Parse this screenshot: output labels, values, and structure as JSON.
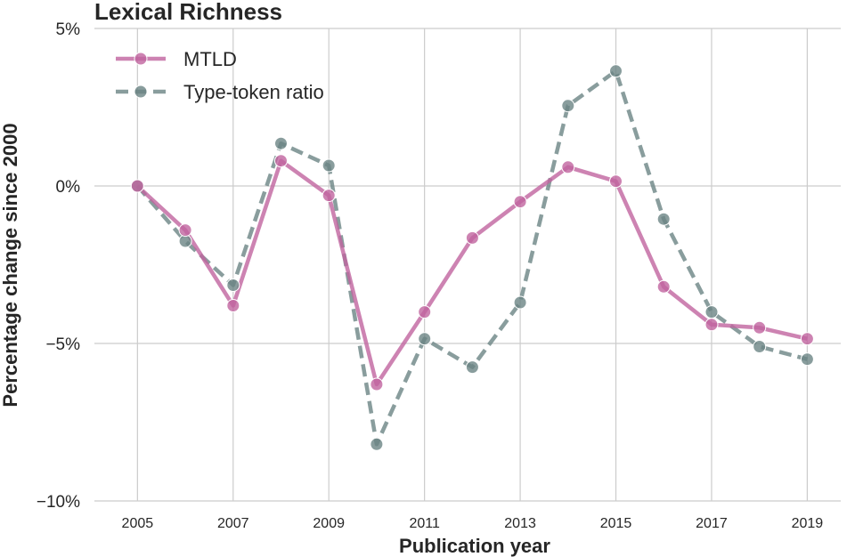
{
  "chart_data": {
    "type": "line",
    "title": "Lexical Richness",
    "xlabel": "Publication year",
    "ylabel": "Percentage change since 2000",
    "x": [
      2005,
      2006,
      2007,
      2008,
      2009,
      2010,
      2011,
      2012,
      2013,
      2014,
      2015,
      2016,
      2017,
      2018,
      2019
    ],
    "xlim": [
      2004.1,
      2019.7
    ],
    "ylim": [
      -10,
      5
    ],
    "xticks": [
      2005,
      2007,
      2009,
      2011,
      2013,
      2015,
      2017,
      2019
    ],
    "xtick_labels": [
      "2005",
      "2007",
      "2009",
      "2011",
      "2013",
      "2015",
      "2017",
      "2019"
    ],
    "yticks": [
      5,
      0,
      -5,
      -10
    ],
    "ytick_labels": [
      "5%",
      "0%",
      "−5%",
      "−10%"
    ],
    "grid": true,
    "legend_position": "top-left",
    "series": [
      {
        "name": "MTLD",
        "color": "#c0649f",
        "line_style": "solid",
        "marker": "circle",
        "values": [
          0.0,
          -1.4,
          -3.8,
          0.8,
          -0.3,
          -6.3,
          -4.0,
          -1.65,
          -0.5,
          0.6,
          0.15,
          -3.2,
          -4.4,
          -4.5,
          -4.85
        ]
      },
      {
        "name": "Type-token ratio",
        "color": "#6b8585",
        "line_style": "dashed",
        "marker": "circle",
        "values": [
          0.0,
          -1.75,
          -3.15,
          1.35,
          0.65,
          -8.2,
          -4.85,
          -5.75,
          -3.7,
          2.55,
          3.65,
          -1.05,
          -4.0,
          -5.1,
          -5.5
        ]
      }
    ]
  }
}
